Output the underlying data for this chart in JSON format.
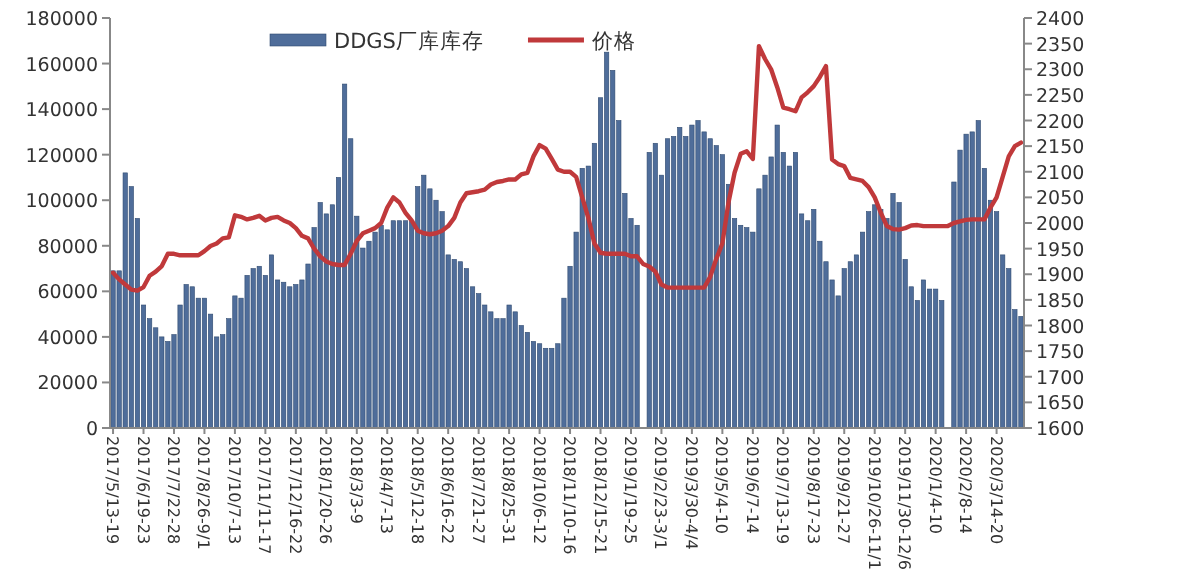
{
  "chart_data": {
    "type": "bar",
    "categories": [
      "2017/5/13-19",
      null,
      null,
      null,
      null,
      "2017/6/19-23",
      null,
      null,
      null,
      null,
      "2017/7/22-28",
      null,
      null,
      null,
      null,
      "2017/8/26-9/1",
      null,
      null,
      null,
      null,
      "2017/10/7-13",
      null,
      null,
      null,
      null,
      "2017/11/11-17",
      null,
      null,
      null,
      null,
      "2017/12/16-22",
      null,
      null,
      null,
      null,
      "2018/1/20-26",
      null,
      null,
      null,
      null,
      "2018/3/3-9",
      null,
      null,
      null,
      null,
      "2018/4/7-13",
      null,
      null,
      null,
      null,
      "2018/5/12-18",
      null,
      null,
      null,
      null,
      "2018/6/16-22",
      null,
      null,
      null,
      null,
      "2018/7/21-27",
      null,
      null,
      null,
      null,
      "2018/8/25-31",
      null,
      null,
      null,
      null,
      "2018/10/6-12",
      null,
      null,
      null,
      null,
      "2018/11/10-16",
      null,
      null,
      null,
      null,
      "2018/12/15-21",
      null,
      null,
      null,
      null,
      "2019/1/19-25",
      null,
      null,
      null,
      null,
      "2019/2/23-3/1",
      null,
      null,
      null,
      null,
      "2019/3/30-4/4",
      null,
      null,
      null,
      null,
      "2019/5/4-10",
      null,
      null,
      null,
      null,
      "2019/6/7-14",
      null,
      null,
      null,
      null,
      "2019/7/13-19",
      null,
      null,
      null,
      null,
      "2019/8/17-23",
      null,
      null,
      null,
      null,
      "2019/9/21-27",
      null,
      null,
      null,
      null,
      "2019/10/26-11/1",
      null,
      null,
      null,
      null,
      "2019/11/30-12/6",
      null,
      null,
      null,
      null,
      "2020/1/4-10",
      null,
      null,
      null,
      null,
      "2020/2/8-14",
      null,
      null,
      null,
      null,
      "2020/3/14-20",
      null,
      null,
      null,
      null
    ],
    "series": [
      {
        "name": "DDGS厂库库存",
        "color": "#4f6d9a",
        "values": [
          69000,
          69000,
          112000,
          106000,
          92000,
          54000,
          48000,
          44000,
          40000,
          38000,
          41000,
          54000,
          63000,
          62000,
          57000,
          57000,
          50000,
          40000,
          41000,
          48000,
          58000,
          57000,
          67000,
          70000,
          71000,
          67000,
          76000,
          65000,
          64000,
          62000,
          63000,
          65000,
          72000,
          88000,
          99000,
          94000,
          98000,
          110000,
          151000,
          127000,
          93000,
          79000,
          82000,
          86000,
          89000,
          87000,
          91000,
          91000,
          91000,
          91000,
          106000,
          111000,
          105000,
          100000,
          95000,
          76000,
          74000,
          73000,
          70000,
          62000,
          59000,
          54000,
          51000,
          48000,
          48000,
          54000,
          51000,
          45000,
          42000,
          38000,
          37000,
          35000,
          35000,
          37000,
          57000,
          71000,
          86000,
          114000,
          115000,
          125000,
          145000,
          165000,
          157000,
          135000,
          103000,
          92000,
          89000,
          null,
          121000,
          125000,
          111000,
          127000,
          128000,
          132000,
          128000,
          133000,
          135000,
          130000,
          127000,
          124000,
          120000,
          107000,
          92000,
          89000,
          88000,
          86000,
          105000,
          111000,
          119000,
          133000,
          121000,
          115000,
          121000,
          94000,
          91000,
          96000,
          82000,
          73000,
          65000,
          58000,
          70000,
          73000,
          76000,
          86000,
          95000,
          98000,
          96000,
          92000,
          103000,
          99000,
          74000,
          62000,
          56000,
          65000,
          61000,
          61000,
          56000,
          null,
          108000,
          122000,
          129000,
          130000,
          135000,
          114000,
          100000,
          95000,
          76000,
          70000,
          52000,
          49000
        ]
      },
      {
        "name": "价格",
        "type": "line",
        "axis": "y2",
        "color": "#c0393b",
        "values": [
          1903,
          1890,
          1880,
          1870,
          1868,
          1875,
          1897,
          1905,
          1916,
          1940,
          1940,
          1937,
          1937,
          1937,
          1937,
          1945,
          1955,
          1960,
          1970,
          1972,
          2015,
          2012,
          2007,
          2010,
          2014,
          2005,
          2010,
          2012,
          2005,
          2000,
          1990,
          1975,
          1970,
          1950,
          1935,
          1925,
          1920,
          1918,
          1918,
          1940,
          1965,
          1980,
          1985,
          1990,
          2000,
          2030,
          2050,
          2040,
          2020,
          2005,
          1985,
          1980,
          1978,
          1980,
          1985,
          1994,
          2010,
          2040,
          2058,
          2060,
          2062,
          2065,
          2075,
          2080,
          2082,
          2085,
          2085,
          2095,
          2098,
          2130,
          2152,
          2145,
          2125,
          2104,
          2100,
          2100,
          2090,
          2050,
          2010,
          1960,
          1942,
          1940,
          1940,
          1940,
          1940,
          1935,
          1935,
          1920,
          1915,
          1905,
          1880,
          1874,
          1874,
          1874,
          1874,
          1874,
          1874,
          1874,
          1895,
          1930,
          1960,
          2040,
          2098,
          2135,
          2140,
          2125,
          2345,
          2320,
          2300,
          2265,
          2225,
          2222,
          2218,
          2245,
          2255,
          2267,
          2285,
          2306,
          2124,
          2115,
          2111,
          2088,
          2085,
          2082,
          2070,
          2050,
          2020,
          1994,
          1988,
          1987,
          1990,
          1995,
          1996,
          1994,
          1994,
          1994,
          1994,
          1994,
          2000,
          2003,
          2006,
          2007,
          2007,
          2007,
          2030,
          2050,
          2090,
          2130,
          2150,
          2157
        ]
      }
    ],
    "ylim": [
      0,
      180000
    ],
    "yticks": [
      0,
      20000,
      40000,
      60000,
      80000,
      100000,
      120000,
      140000,
      160000,
      180000
    ],
    "y2lim": [
      1600,
      2400
    ],
    "y2ticks": [
      1600,
      1650,
      1700,
      1750,
      1800,
      1850,
      1900,
      1950,
      2000,
      2050,
      2100,
      2150,
      2200,
      2250,
      2300,
      2350,
      2400
    ],
    "legend": "top"
  }
}
